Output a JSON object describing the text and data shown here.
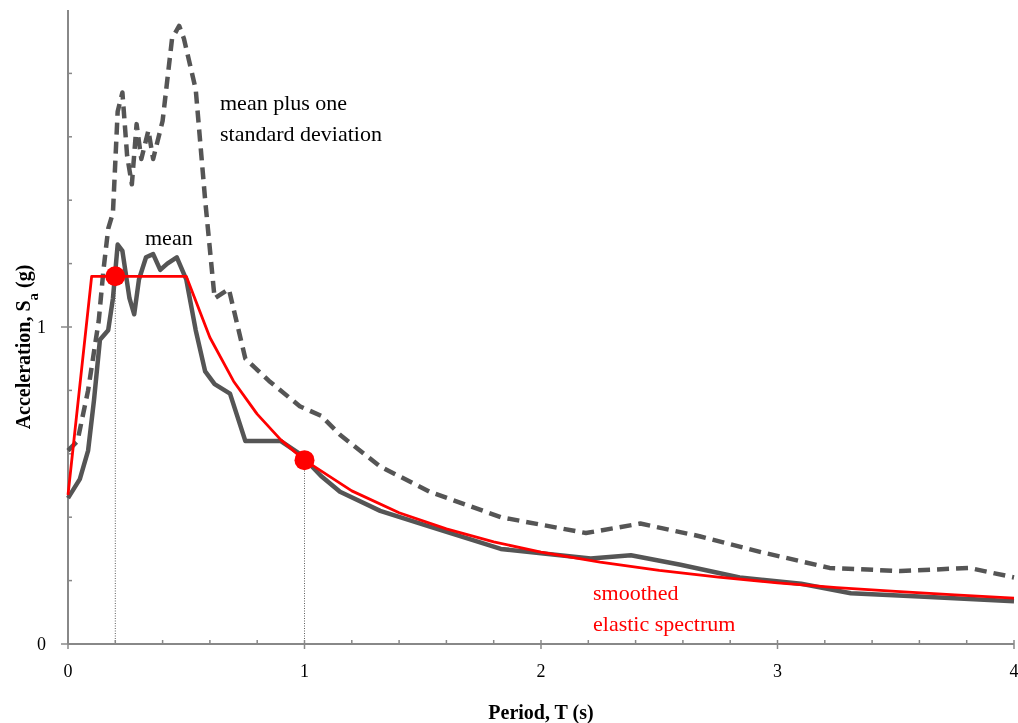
{
  "chart_data": {
    "type": "line",
    "xlabel": "Period, T (s)",
    "ylabel": "Acceleration, S$_{a}$ (g)",
    "xlim": [
      0,
      4
    ],
    "ylim": [
      0,
      2
    ],
    "xticks": [
      0,
      {
        "value": 0.2,
        "label": null
      },
      {
        "value": 0.4,
        "label": null
      },
      {
        "value": 0.6,
        "label": null
      },
      {
        "value": 0.8,
        "label": null
      },
      1,
      {
        "value": 1.2,
        "label": null
      },
      {
        "value": 1.4,
        "label": null
      },
      {
        "value": 1.6,
        "label": null
      },
      {
        "value": 1.8,
        "label": null
      },
      2,
      {
        "value": 2.2,
        "label": null
      },
      {
        "value": 2.4,
        "label": null
      },
      {
        "value": 2.6,
        "label": null
      },
      {
        "value": 2.8,
        "label": null
      },
      3,
      {
        "value": 3.2,
        "label": null
      },
      {
        "value": 3.4,
        "label": null
      },
      {
        "value": 3.6,
        "label": null
      },
      {
        "value": 3.8,
        "label": null
      },
      4
    ],
    "yticks": [
      0,
      {
        "value": 0.2,
        "label": null
      },
      {
        "value": 0.4,
        "label": null
      },
      {
        "value": 0.6,
        "label": null
      },
      {
        "value": 0.8,
        "label": null
      },
      1,
      {
        "value": 1.2,
        "label": null
      },
      {
        "value": 1.4,
        "label": null
      },
      {
        "value": 1.6,
        "label": null
      },
      {
        "value": 1.8,
        "label": null
      }
    ],
    "grid": false,
    "series": [
      {
        "name": "mean plus one\nstandard deviation",
        "color": "#555555",
        "line_style": "dashed",
        "x": [
          0,
          0.04,
          0.085,
          0.13,
          0.15,
          0.17,
          0.19,
          0.21,
          0.23,
          0.25,
          0.27,
          0.29,
          0.31,
          0.34,
          0.36,
          0.4,
          0.44,
          0.47,
          0.49,
          0.54,
          0.58,
          0.62,
          0.68,
          0.75,
          0.85,
          0.98,
          1.07,
          1.15,
          1.32,
          1.53,
          1.83,
          2.19,
          2.42,
          2.67,
          2.93,
          3.22,
          3.52,
          3.81,
          4
        ],
        "values": [
          0.61,
          0.64,
          0.8,
          1.02,
          1.18,
          1.31,
          1.36,
          1.68,
          1.74,
          1.54,
          1.45,
          1.64,
          1.53,
          1.62,
          1.53,
          1.65,
          1.91,
          1.95,
          1.91,
          1.75,
          1.4,
          1.09,
          1.12,
          0.9,
          0.83,
          0.75,
          0.72,
          0.66,
          0.56,
          0.48,
          0.4,
          0.35,
          0.38,
          0.34,
          0.29,
          0.24,
          0.23,
          0.24,
          0.21
        ]
      },
      {
        "name": "mean",
        "color": "#555555",
        "line_style": "solid",
        "x": [
          0,
          0.05,
          0.085,
          0.11,
          0.135,
          0.17,
          0.19,
          0.21,
          0.23,
          0.26,
          0.28,
          0.3,
          0.33,
          0.36,
          0.39,
          0.42,
          0.46,
          0.5,
          0.54,
          0.58,
          0.62,
          0.685,
          0.75,
          0.9,
          0.98,
          1.07,
          1.15,
          1.32,
          1.53,
          1.83,
          2.08,
          2.21,
          2.38,
          2.59,
          2.84,
          3.1,
          3.31,
          3.6,
          4
        ],
        "values": [
          0.46,
          0.52,
          0.61,
          0.77,
          0.96,
          0.99,
          1.09,
          1.26,
          1.24,
          1.09,
          1.04,
          1.15,
          1.22,
          1.23,
          1.18,
          1.2,
          1.22,
          1.15,
          0.99,
          0.86,
          0.82,
          0.79,
          0.64,
          0.64,
          0.6,
          0.53,
          0.48,
          0.42,
          0.37,
          0.3,
          0.28,
          0.27,
          0.28,
          0.25,
          0.21,
          0.19,
          0.16,
          0.15,
          0.135
        ]
      },
      {
        "name": "smoothed\nelastic spectrum",
        "color": "#ff0000",
        "line_style": "solid",
        "x": [
          0,
          0.1,
          0.5,
          0.6,
          0.7,
          0.8,
          0.9,
          1,
          1.2,
          1.4,
          1.6,
          1.8,
          2,
          2.25,
          2.5,
          2.75,
          3,
          3.25,
          3.5,
          3.75,
          4
        ],
        "values": [
          0.47,
          1.16,
          1.16,
          0.967,
          0.829,
          0.725,
          0.644,
          0.58,
          0.483,
          0.414,
          0.363,
          0.322,
          0.29,
          0.258,
          0.232,
          0.211,
          0.193,
          0.178,
          0.166,
          0.155,
          0.145
        ]
      },
      {
        "type": "scatter",
        "color": "#ff0000",
        "marker": "circle",
        "x": [
          0.2,
          1
        ],
        "values": [
          1.16,
          0.58
        ]
      }
    ],
    "ref_lines": [
      {
        "axis": "x",
        "value": 0.2
      },
      {
        "axis": "x",
        "value": 1
      }
    ]
  }
}
